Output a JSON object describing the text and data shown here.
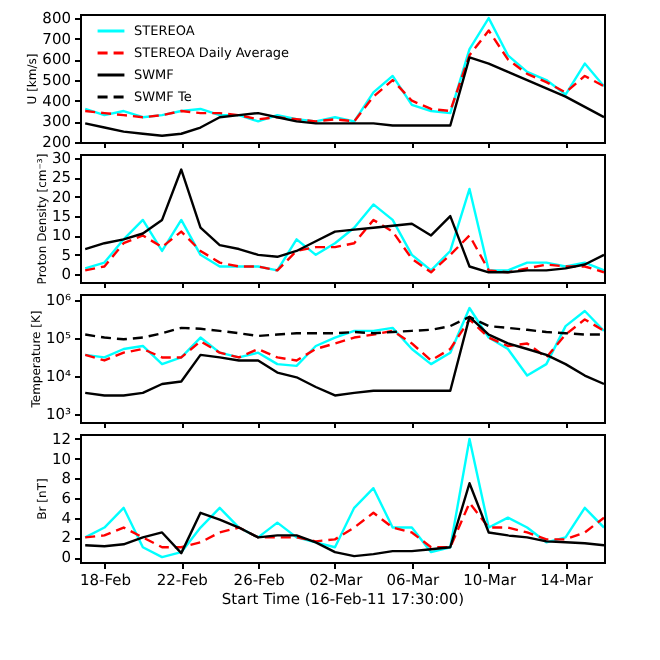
{
  "chart_data": [
    {
      "type": "line",
      "ylabel": "U [km/s]",
      "legend": "top left",
      "tick_labels": "y",
      "x": [
        "--02-17",
        "--02-18",
        "--02-19",
        "--02-20",
        "--02-21",
        "--02-22",
        "--02-23",
        "--02-24",
        "--02-25",
        "--02-26",
        "--02-27",
        "--02-28",
        "--03-01",
        "--03-02",
        "--03-03",
        "--03-04",
        "--03-05",
        "--03-06",
        "--03-07",
        "--03-08",
        "--03-09",
        "--03-10",
        "--03-11",
        "--03-12",
        "--03-13",
        "--03-14",
        "--03-15",
        "--03-16"
      ],
      "xlim": [
        "--02-16T17:30",
        "--03-16T00:00"
      ],
      "xticks": [
        {
          "value": "--02-18",
          "label": null
        },
        {
          "value": "--02-22",
          "label": null
        },
        {
          "value": "--02-26",
          "label": null
        },
        {
          "value": "--03-02",
          "label": null
        },
        {
          "value": "--03-06",
          "label": null
        },
        {
          "value": "--03-10",
          "label": null
        },
        {
          "value": "--03-14",
          "label": null
        }
      ],
      "ylim": [
        200,
        820
      ],
      "yticks": [
        200,
        300,
        400,
        500,
        600,
        700,
        800
      ],
      "series": [
        {
          "name": "STEREOA",
          "color": "#00ffff",
          "line_style": "solid",
          "values": [
            360,
            330,
            350,
            320,
            330,
            350,
            360,
            330,
            330,
            300,
            330,
            310,
            300,
            320,
            300,
            440,
            520,
            380,
            350,
            340,
            650,
            800,
            620,
            540,
            500,
            430,
            580,
            470
          ]
        },
        {
          "name": "STEREOA Daily Average",
          "color": "#ff0000",
          "line_style": "dashed",
          "values": [
            350,
            340,
            330,
            320,
            330,
            350,
            340,
            340,
            330,
            310,
            320,
            310,
            300,
            310,
            300,
            420,
            500,
            400,
            360,
            350,
            620,
            740,
            600,
            530,
            490,
            440,
            520,
            470
          ]
        },
        {
          "name": "SWMF",
          "color": "#000000",
          "line_style": "solid",
          "values": [
            290,
            270,
            250,
            240,
            230,
            240,
            270,
            320,
            330,
            340,
            320,
            300,
            290,
            290,
            290,
            290,
            280,
            280,
            280,
            280,
            610,
            580,
            540,
            500,
            460,
            420,
            370,
            320
          ]
        }
      ]
    },
    {
      "type": "line",
      "ylabel": "Proton Density [cm⁻³]",
      "tick_labels": "y",
      "x": [
        "--02-17",
        "--02-18",
        "--02-19",
        "--02-20",
        "--02-21",
        "--02-22",
        "--02-23",
        "--02-24",
        "--02-25",
        "--02-26",
        "--02-27",
        "--02-28",
        "--03-01",
        "--03-02",
        "--03-03",
        "--03-04",
        "--03-05",
        "--03-06",
        "--03-07",
        "--03-08",
        "--03-09",
        "--03-10",
        "--03-11",
        "--03-12",
        "--03-13",
        "--03-14",
        "--03-15",
        "--03-16"
      ],
      "xlim": [
        "--02-16T17:30",
        "--03-16T00:00"
      ],
      "xticks": [
        {
          "value": "--02-18",
          "label": null
        },
        {
          "value": "--02-22",
          "label": null
        },
        {
          "value": "--02-26",
          "label": null
        },
        {
          "value": "--03-02",
          "label": null
        },
        {
          "value": "--03-06",
          "label": null
        },
        {
          "value": "--03-10",
          "label": null
        },
        {
          "value": "--03-14",
          "label": null
        }
      ],
      "ylim": [
        -2,
        31
      ],
      "yticks": [
        0,
        5,
        10,
        15,
        20,
        25,
        30
      ],
      "series": [
        {
          "name": "STEREOA",
          "color": "#00ffff",
          "line_style": "solid",
          "values": [
            1.5,
            3,
            9,
            14,
            6,
            14,
            5,
            2,
            2,
            2,
            1,
            9,
            5,
            8,
            12,
            18,
            14,
            5,
            1,
            6,
            22,
            1,
            1,
            3,
            3,
            2,
            3,
            1
          ]
        },
        {
          "name": "STEREOA Daily Average",
          "color": "#ff0000",
          "line_style": "dashed",
          "values": [
            1,
            2,
            8,
            10,
            7,
            11,
            6,
            3,
            2,
            2,
            1,
            6,
            7,
            7,
            8,
            14,
            11,
            4,
            0.5,
            5,
            10,
            1,
            0.5,
            1.5,
            2.5,
            2,
            2,
            0.5
          ]
        },
        {
          "name": "SWMF",
          "color": "#000000",
          "line_style": "solid",
          "values": [
            6.5,
            8,
            9,
            10.5,
            14,
            27,
            12,
            7.5,
            6.5,
            5,
            4.5,
            6,
            8.5,
            11,
            11.5,
            12,
            12.5,
            13,
            10,
            15,
            2,
            0.5,
            0.5,
            1,
            1,
            1.5,
            2.5,
            5
          ]
        }
      ]
    },
    {
      "type": "line",
      "ylabel": "Temperature [K]",
      "log": "y",
      "tick_labels": "y",
      "x": [
        "--02-17",
        "--02-18",
        "--02-19",
        "--02-20",
        "--02-21",
        "--02-22",
        "--02-23",
        "--02-24",
        "--02-25",
        "--02-26",
        "--02-27",
        "--02-28",
        "--03-01",
        "--03-02",
        "--03-03",
        "--03-04",
        "--03-05",
        "--03-06",
        "--03-07",
        "--03-08",
        "--03-09",
        "--03-10",
        "--03-11",
        "--03-12",
        "--03-13",
        "--03-14",
        "--03-15",
        "--03-16"
      ],
      "xlim": [
        "--02-16T17:30",
        "--03-16T00:00"
      ],
      "xticks": [
        {
          "value": "--02-18",
          "label": null
        },
        {
          "value": "--02-22",
          "label": null
        },
        {
          "value": "--02-26",
          "label": null
        },
        {
          "value": "--03-02",
          "label": null
        },
        {
          "value": "--03-06",
          "label": null
        },
        {
          "value": "--03-10",
          "label": null
        },
        {
          "value": "--03-14",
          "label": null
        }
      ],
      "ylim": [
        600,
        1400000
      ],
      "yticks": [
        {
          "value": 1000,
          "label": "10³"
        },
        {
          "value": 10000,
          "label": "10⁴"
        },
        {
          "value": 100000,
          "label": "10⁵"
        },
        {
          "value": 1000000,
          "label": "10⁶"
        }
      ],
      "series": [
        {
          "name": "STEREOA",
          "color": "#00ffff",
          "line_style": "solid",
          "values": [
            35000,
            30000,
            50000,
            60000,
            20000,
            30000,
            100000,
            40000,
            30000,
            40000,
            20000,
            18000,
            60000,
            100000,
            150000,
            150000,
            180000,
            50000,
            20000,
            40000,
            600000,
            100000,
            50000,
            10000,
            20000,
            200000,
            500000,
            150000
          ]
        },
        {
          "name": "STEREOA Daily Average",
          "color": "#ff0000",
          "line_style": "dashed",
          "values": [
            35000,
            25000,
            40000,
            50000,
            30000,
            30000,
            80000,
            40000,
            30000,
            50000,
            30000,
            25000,
            50000,
            70000,
            100000,
            120000,
            150000,
            70000,
            25000,
            50000,
            300000,
            100000,
            60000,
            70000,
            30000,
            120000,
            300000,
            150000
          ]
        },
        {
          "name": "SWMF",
          "color": "#000000",
          "line_style": "solid",
          "values": [
            3500,
            3000,
            3000,
            3500,
            6000,
            7000,
            35000,
            30000,
            25000,
            25000,
            12000,
            9000,
            5000,
            3000,
            3500,
            4000,
            4000,
            4000,
            4000,
            4000,
            350000,
            120000,
            70000,
            50000,
            35000,
            20000,
            10000,
            6000
          ]
        },
        {
          "name": "SWMF Te",
          "color": "#000000",
          "line_style": "dashed",
          "values": [
            120000,
            100000,
            90000,
            100000,
            130000,
            180000,
            170000,
            150000,
            130000,
            110000,
            120000,
            130000,
            130000,
            130000,
            140000,
            130000,
            140000,
            150000,
            160000,
            200000,
            350000,
            200000,
            180000,
            160000,
            140000,
            130000,
            120000,
            120000
          ]
        }
      ]
    },
    {
      "type": "line",
      "ylabel": "Br [nT]",
      "xlabel": "Start Time (16-Feb-11 17:30:00)",
      "x": [
        "--02-17",
        "--02-18",
        "--02-19",
        "--02-20",
        "--02-21",
        "--02-22",
        "--02-23",
        "--02-24",
        "--02-25",
        "--02-26",
        "--02-27",
        "--02-28",
        "--03-01",
        "--03-02",
        "--03-03",
        "--03-04",
        "--03-05",
        "--03-06",
        "--03-07",
        "--03-08",
        "--03-09",
        "--03-10",
        "--03-11",
        "--03-12",
        "--03-13",
        "--03-14",
        "--03-15",
        "--03-16"
      ],
      "xlim": [
        "--02-16T17:30",
        "--03-16T00:00"
      ],
      "xticks": [
        {
          "value": "--02-18",
          "label": "18-Feb"
        },
        {
          "value": "--02-22",
          "label": "22-Feb"
        },
        {
          "value": "--02-26",
          "label": "26-Feb"
        },
        {
          "value": "--03-02",
          "label": "02-Mar"
        },
        {
          "value": "--03-06",
          "label": "06-Mar"
        },
        {
          "value": "--03-10",
          "label": "10-Mar"
        },
        {
          "value": "--03-14",
          "label": "14-Mar"
        }
      ],
      "ylim": [
        -0.5,
        12.5
      ],
      "yticks": [
        0,
        2,
        4,
        6,
        8,
        10,
        12
      ],
      "series": [
        {
          "name": "STEREOA",
          "color": "#00ffff",
          "line_style": "solid",
          "values": [
            2,
            3,
            5,
            1,
            0,
            0.5,
            3,
            5,
            3,
            2,
            3.5,
            2,
            1.5,
            1,
            5,
            7,
            3,
            3,
            0.5,
            1,
            12,
            3,
            4,
            3,
            1.5,
            2,
            5,
            3
          ]
        },
        {
          "name": "STEREOA Daily Average",
          "color": "#ff0000",
          "line_style": "dashed",
          "values": [
            2,
            2.2,
            3,
            2,
            1,
            1,
            1.5,
            2.5,
            3,
            2,
            2,
            2,
            1.6,
            1.8,
            3,
            4.5,
            3,
            2.5,
            1,
            1,
            5.5,
            3,
            3,
            2.5,
            1.8,
            1.8,
            2.5,
            4
          ]
        },
        {
          "name": "SWMF",
          "color": "#000000",
          "line_style": "solid",
          "values": [
            1.2,
            1.1,
            1.3,
            2,
            2.5,
            0.4,
            4.5,
            3.8,
            3,
            2,
            2.2,
            2.2,
            1.5,
            0.5,
            0.1,
            0.3,
            0.6,
            0.6,
            0.8,
            1,
            7.5,
            2.5,
            2.2,
            2,
            1.6,
            1.5,
            1.4,
            1.2
          ]
        }
      ]
    }
  ]
}
